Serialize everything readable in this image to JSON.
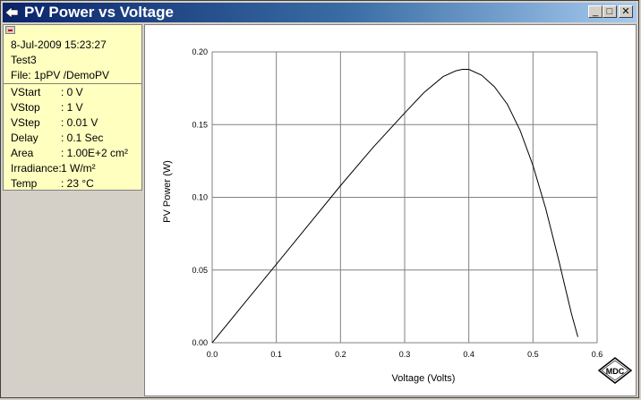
{
  "window": {
    "title": "PV Power vs Voltage",
    "buttons": {
      "minimize": "_",
      "maximize": "□",
      "close": "✕"
    },
    "icon": "diamond-arrow-icon"
  },
  "info_panel": {
    "date": "8-Jul-2009 15:23:27",
    "test": "Test3",
    "file": "File: 1pPV /DemoPV",
    "params": [
      {
        "label": "VStart",
        "value": ": 0 V"
      },
      {
        "label": "VStop",
        "value": ": 1 V"
      },
      {
        "label": "VStep",
        "value": ": 0.01 V"
      },
      {
        "label": "Delay",
        "value": ": 0.1 Sec"
      },
      {
        "label": "Area",
        "value": ": 1.00E+2 cm²"
      },
      {
        "label": "Irradiance:",
        "value": "1 W/m²"
      },
      {
        "label": "Temp",
        "value": ": 23 °C"
      }
    ]
  },
  "logo": "MDC",
  "chart_data": {
    "type": "line",
    "xlabel": "Voltage (Volts)",
    "ylabel": "PV Power (W)",
    "xlim": [
      0,
      0.6
    ],
    "ylim": [
      0,
      0.2
    ],
    "xticks": [
      "0.0",
      "0.1",
      "0.2",
      "0.3",
      "0.4",
      "0.5",
      "0.6"
    ],
    "yticks": [
      "0.00",
      "0.05",
      "0.10",
      "0.15",
      "0.20"
    ],
    "grid": true,
    "series": [
      {
        "color": "#000000",
        "x": [
          0,
          0.05,
          0.1,
          0.15,
          0.2,
          0.25,
          0.3,
          0.33,
          0.36,
          0.38,
          0.39,
          0.4,
          0.42,
          0.44,
          0.46,
          0.48,
          0.5,
          0.52,
          0.54,
          0.56,
          0.57
        ],
        "y": [
          0,
          0.027,
          0.054,
          0.081,
          0.108,
          0.134,
          0.158,
          0.172,
          0.183,
          0.187,
          0.188,
          0.188,
          0.184,
          0.176,
          0.164,
          0.146,
          0.122,
          0.092,
          0.057,
          0.02,
          0.004
        ]
      }
    ]
  }
}
